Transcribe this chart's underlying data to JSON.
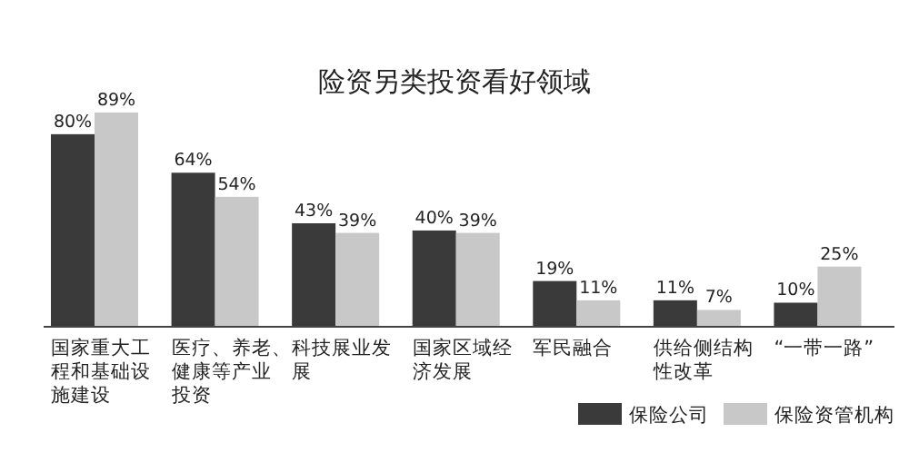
{
  "chart_data": {
    "type": "bar",
    "title": "险资另类投资看好领域",
    "categories": [
      "国家重大工程和基础设施建设",
      "医疗、养老、健康等产业投资",
      "科技展业发展",
      "国家区域经济发展",
      "军民融合",
      "供给侧结构性改革",
      "“一带一路”"
    ],
    "series": [
      {
        "name": "保险公司",
        "color": "#3a3a3a",
        "values": [
          80,
          64,
          43,
          40,
          19,
          11,
          10
        ],
        "value_labels": [
          "80%",
          "64%",
          "43%",
          "40%",
          "19%",
          "11%",
          "10%"
        ]
      },
      {
        "name": "保险资管机构",
        "color": "#c8c8c8",
        "values": [
          89,
          54,
          39,
          39,
          11,
          7,
          25
        ],
        "value_labels": [
          "89%",
          "54%",
          "39%",
          "39%",
          "11%",
          "7%",
          "25%"
        ]
      }
    ],
    "legend": "bottom right"
  }
}
